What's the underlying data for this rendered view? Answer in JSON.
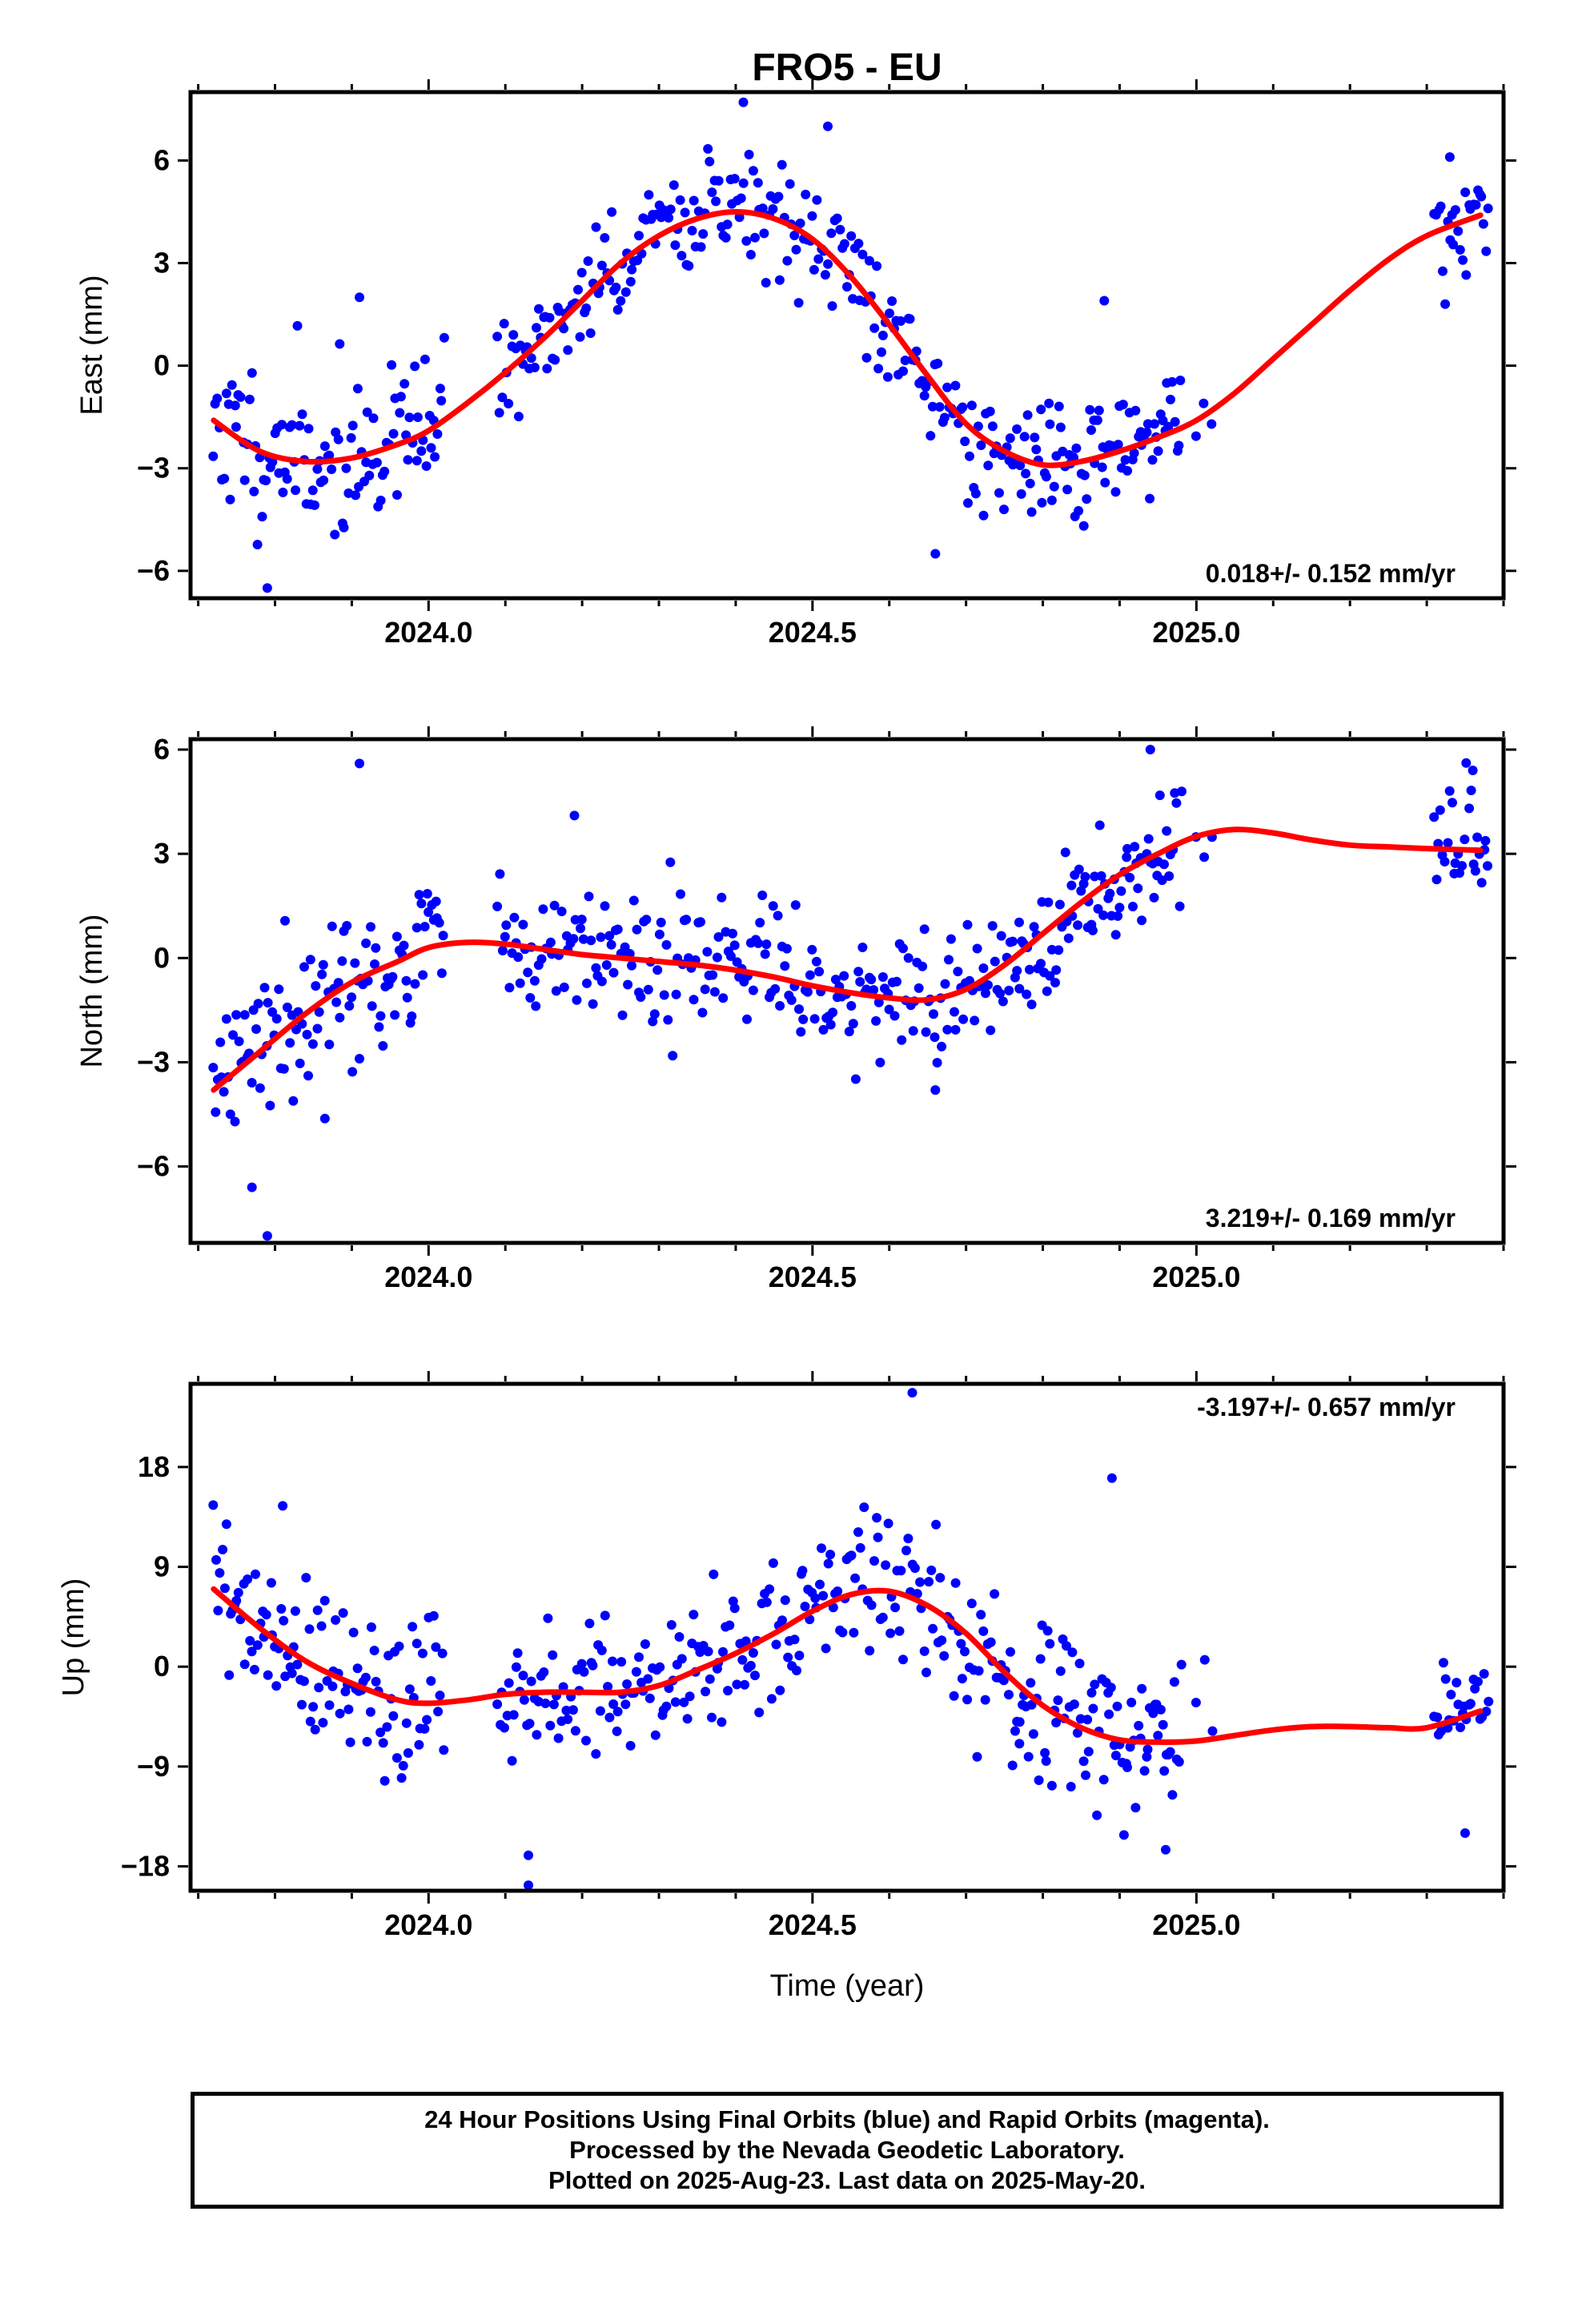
{
  "title": "FRO5 - EU",
  "xlabel": "Time (year)",
  "colors": {
    "final_orbits": "#0000ff",
    "rapid_orbits": "#ff00ff",
    "fit": "#ff0000",
    "axis": "#000000"
  },
  "footer": {
    "line1": "24 Hour Positions Using Final Orbits (blue) and Rapid Orbits (magenta).",
    "line2": "Processed by the Nevada Geodetic Laboratory.",
    "line3": "Plotted on 2025-Aug-23. Last data on 2025-May-20."
  },
  "chart_data": [
    {
      "type": "scatter",
      "ylabel": "East (mm)",
      "rate_label": "0.018+/- 0.152 mm/yr",
      "xlim": [
        2023.69,
        2025.4
      ],
      "ylim": [
        -6.8,
        8.0
      ],
      "x_ticks": [
        2024.0,
        2024.5,
        2025.0
      ],
      "x_tick_labels": [
        "2024.0",
        "2024.5",
        "2025.0"
      ],
      "y_ticks": [
        -6,
        -3,
        0,
        3,
        6
      ],
      "y_tick_labels": [
        "−6",
        "−3",
        "0",
        "3",
        "6"
      ],
      "fit_curve": {
        "x": [
          2023.72,
          2023.78,
          2023.84,
          2023.9,
          2023.96,
          2024.0,
          2024.05,
          2024.1,
          2024.15,
          2024.2,
          2024.25,
          2024.3,
          2024.35,
          2024.4,
          2024.45,
          2024.5,
          2024.55,
          2024.6,
          2024.65,
          2024.7,
          2024.75,
          2024.8,
          2024.85,
          2024.9,
          2024.95,
          2025.0,
          2025.05,
          2025.1,
          2025.15,
          2025.2,
          2025.25,
          2025.3,
          2025.37
        ],
        "y": [
          -1.6,
          -2.5,
          -2.8,
          -2.7,
          -2.3,
          -1.9,
          -1.1,
          -0.2,
          0.8,
          1.9,
          3.0,
          3.8,
          4.3,
          4.5,
          4.3,
          3.7,
          2.6,
          1.2,
          -0.3,
          -1.7,
          -2.5,
          -2.9,
          -2.8,
          -2.5,
          -2.1,
          -1.6,
          -0.8,
          0.2,
          1.2,
          2.2,
          3.1,
          3.8,
          4.4
        ]
      },
      "segments": [
        {
          "x0": 2023.72,
          "x1": 2024.02,
          "n": 110,
          "scatter": 1.1,
          "seed": 11
        },
        {
          "x0": 2024.09,
          "x1": 2024.77,
          "n": 230,
          "scatter": 0.9,
          "seed": 12
        },
        {
          "x0": 2024.77,
          "x1": 2024.98,
          "n": 80,
          "scatter": 0.8,
          "seed": 13
        },
        {
          "x0": 2025.0,
          "x1": 2025.02,
          "n": 3,
          "scatter": 0.5,
          "seed": 14
        },
        {
          "x0": 2025.31,
          "x1": 2025.38,
          "n": 26,
          "scatter": 0.7,
          "seed": 15
        }
      ],
      "outliers": [
        {
          "x": 2023.91,
          "y": 2.0
        },
        {
          "x": 2023.79,
          "y": -6.5
        },
        {
          "x": 2024.41,
          "y": 7.7
        },
        {
          "x": 2024.52,
          "y": 7.0
        },
        {
          "x": 2024.66,
          "y": -5.5
        },
        {
          "x": 2024.88,
          "y": 1.9
        },
        {
          "x": 2025.33,
          "y": 6.1
        }
      ]
    },
    {
      "type": "scatter",
      "ylabel": "North (mm)",
      "rate_label": "3.219+/- 0.169 mm/yr",
      "xlim": [
        2023.69,
        2025.4
      ],
      "ylim": [
        -8.2,
        6.3
      ],
      "x_ticks": [
        2024.0,
        2024.5,
        2025.0
      ],
      "x_tick_labels": [
        "2024.0",
        "2024.5",
        "2025.0"
      ],
      "y_ticks": [
        -6,
        -3,
        0,
        3,
        6
      ],
      "y_tick_labels": [
        "−6",
        "−3",
        "0",
        "3",
        "6"
      ],
      "fit_curve": {
        "x": [
          2023.72,
          2023.78,
          2023.84,
          2023.9,
          2023.96,
          2024.0,
          2024.05,
          2024.1,
          2024.15,
          2024.2,
          2024.25,
          2024.3,
          2024.35,
          2024.4,
          2024.45,
          2024.5,
          2024.55,
          2024.6,
          2024.65,
          2024.7,
          2024.75,
          2024.8,
          2024.85,
          2024.9,
          2024.95,
          2025.0,
          2025.05,
          2025.1,
          2025.15,
          2025.2,
          2025.25,
          2025.3,
          2025.37
        ],
        "y": [
          -3.8,
          -2.7,
          -1.6,
          -0.7,
          -0.1,
          0.3,
          0.45,
          0.4,
          0.25,
          0.1,
          0.0,
          -0.1,
          -0.2,
          -0.35,
          -0.55,
          -0.8,
          -1.0,
          -1.15,
          -1.2,
          -0.9,
          -0.2,
          0.7,
          1.6,
          2.4,
          3.0,
          3.5,
          3.7,
          3.6,
          3.4,
          3.25,
          3.2,
          3.15,
          3.1
        ]
      },
      "segments": [
        {
          "x0": 2023.72,
          "x1": 2024.02,
          "n": 110,
          "scatter": 1.1,
          "seed": 21
        },
        {
          "x0": 2024.09,
          "x1": 2024.77,
          "n": 230,
          "scatter": 0.9,
          "seed": 22
        },
        {
          "x0": 2024.77,
          "x1": 2024.98,
          "n": 80,
          "scatter": 0.8,
          "seed": 23
        },
        {
          "x0": 2025.0,
          "x1": 2025.02,
          "n": 3,
          "scatter": 0.5,
          "seed": 24
        },
        {
          "x0": 2025.31,
          "x1": 2025.38,
          "n": 26,
          "scatter": 0.9,
          "seed": 25
        }
      ],
      "outliers": [
        {
          "x": 2023.91,
          "y": 5.6
        },
        {
          "x": 2023.79,
          "y": -8.0
        },
        {
          "x": 2023.77,
          "y": -6.6
        },
        {
          "x": 2024.19,
          "y": 4.1
        },
        {
          "x": 2024.66,
          "y": -3.8
        },
        {
          "x": 2024.94,
          "y": 6.0
        },
        {
          "x": 2025.36,
          "y": 5.4
        }
      ]
    },
    {
      "type": "scatter",
      "ylabel": "Up (mm)",
      "rate_label": "-3.197+/- 0.657 mm/yr",
      "xlim": [
        2023.69,
        2025.4
      ],
      "ylim": [
        -20.2,
        25.5
      ],
      "x_ticks": [
        2024.0,
        2024.5,
        2025.0
      ],
      "x_tick_labels": [
        "2024.0",
        "2024.5",
        "2025.0"
      ],
      "y_ticks": [
        -18,
        -9,
        0,
        9,
        18
      ],
      "y_tick_labels": [
        "−18",
        "−9",
        "0",
        "9",
        "18"
      ],
      "fit_curve": {
        "x": [
          2023.72,
          2023.78,
          2023.84,
          2023.9,
          2023.96,
          2024.0,
          2024.05,
          2024.1,
          2024.15,
          2024.2,
          2024.25,
          2024.3,
          2024.35,
          2024.4,
          2024.45,
          2024.5,
          2024.55,
          2024.6,
          2024.65,
          2024.7,
          2024.75,
          2024.8,
          2024.85,
          2024.9,
          2024.95,
          2025.0,
          2025.05,
          2025.1,
          2025.15,
          2025.2,
          2025.25,
          2025.3,
          2025.37
        ],
        "y": [
          7.0,
          3.5,
          0.5,
          -1.5,
          -3.0,
          -3.3,
          -3.0,
          -2.5,
          -2.3,
          -2.3,
          -2.3,
          -1.7,
          -0.3,
          1.2,
          3.0,
          5.0,
          6.5,
          6.8,
          5.5,
          3.0,
          -0.5,
          -3.5,
          -5.5,
          -6.6,
          -6.8,
          -6.7,
          -6.2,
          -5.7,
          -5.4,
          -5.4,
          -5.5,
          -5.5,
          -4.0
        ]
      },
      "segments": [
        {
          "x0": 2023.72,
          "x1": 2024.02,
          "n": 110,
          "scatter": 3.6,
          "seed": 31
        },
        {
          "x0": 2024.09,
          "x1": 2024.77,
          "n": 230,
          "scatter": 3.4,
          "seed": 32
        },
        {
          "x0": 2024.77,
          "x1": 2024.98,
          "n": 80,
          "scatter": 3.8,
          "seed": 33
        },
        {
          "x0": 2025.0,
          "x1": 2025.02,
          "n": 3,
          "scatter": 3.0,
          "seed": 34
        },
        {
          "x0": 2025.31,
          "x1": 2025.38,
          "n": 26,
          "scatter": 3.0,
          "seed": 35
        }
      ],
      "outliers": [
        {
          "x": 2024.63,
          "y": 24.7
        },
        {
          "x": 2024.13,
          "y": -19.7
        },
        {
          "x": 2024.13,
          "y": -17.0
        },
        {
          "x": 2024.89,
          "y": 17.0
        },
        {
          "x": 2024.96,
          "y": -16.5
        },
        {
          "x": 2025.35,
          "y": -15.0
        },
        {
          "x": 2023.81,
          "y": 14.5
        }
      ]
    }
  ]
}
